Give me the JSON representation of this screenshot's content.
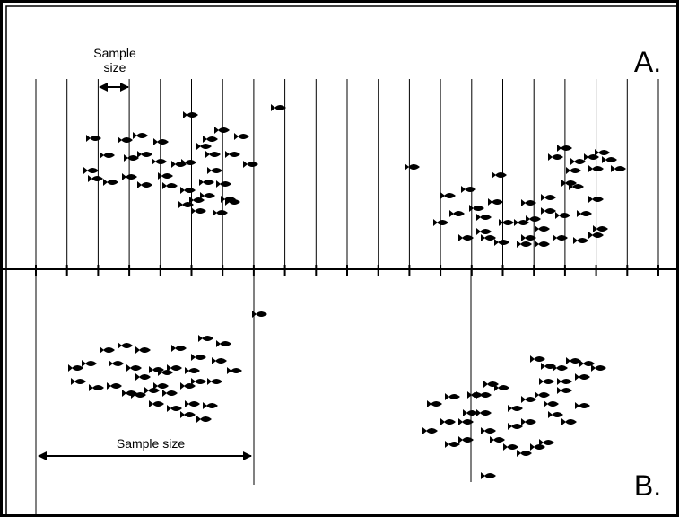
{
  "panel_a": {
    "label": "A.",
    "sample_label": {
      "lines": [
        "Sample",
        "size"
      ]
    }
  },
  "panel_b": {
    "label": "B.",
    "sample_label": "Sample size"
  }
}
